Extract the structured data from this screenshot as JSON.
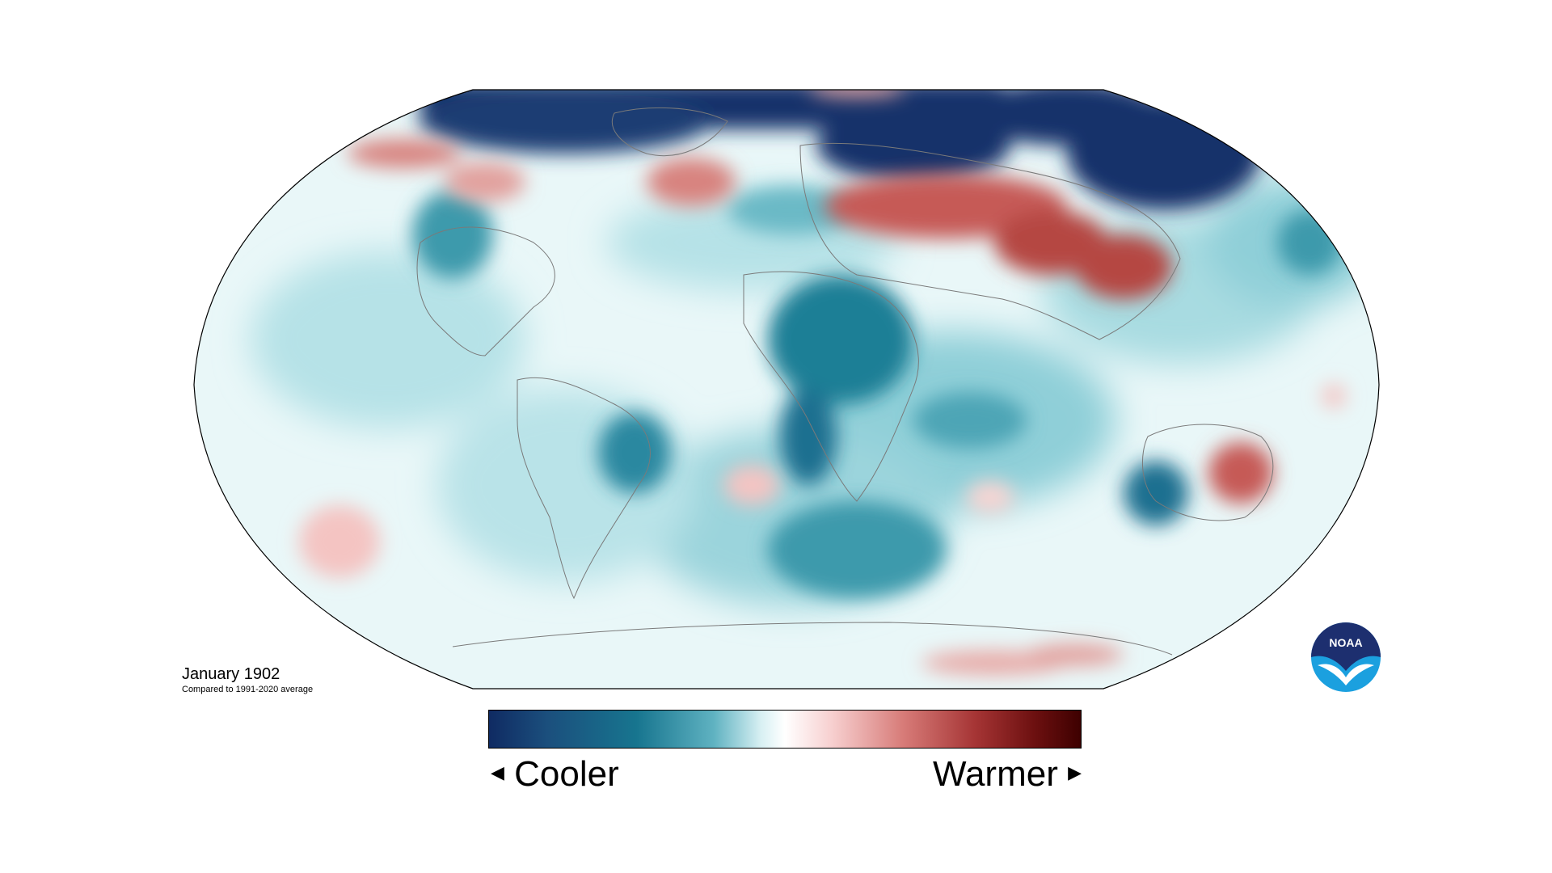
{
  "caption": {
    "title": "January 1902",
    "subtitle": "Compared to 1991-2020 average"
  },
  "legend": {
    "cool_label": "Cooler",
    "warm_label": "Warmer",
    "gradient_colors": [
      "#0f2a62",
      "#1b4f7d",
      "#17758f",
      "#5fb2c1",
      "#d8f0f3",
      "#ffffff",
      "#f7cfcf",
      "#d77b78",
      "#a63535",
      "#6d1010",
      "#3d0000"
    ]
  },
  "logo": {
    "text": "NOAA",
    "colors": {
      "navy": "#1d2f6f",
      "blue": "#1ba0df",
      "white": "#ffffff"
    }
  },
  "map": {
    "background": "#e9f7f8",
    "coast_color": "#7a7a7a",
    "border_color": "#000000",
    "anomaly_colors": {
      "deep_cool": "#14336b",
      "cool": "#1d7f96",
      "light_cool": "#8fcfd8",
      "neutral": "#ffffff",
      "light_warm": "#f4c4c2",
      "warm": "#c65a57"
    }
  }
}
